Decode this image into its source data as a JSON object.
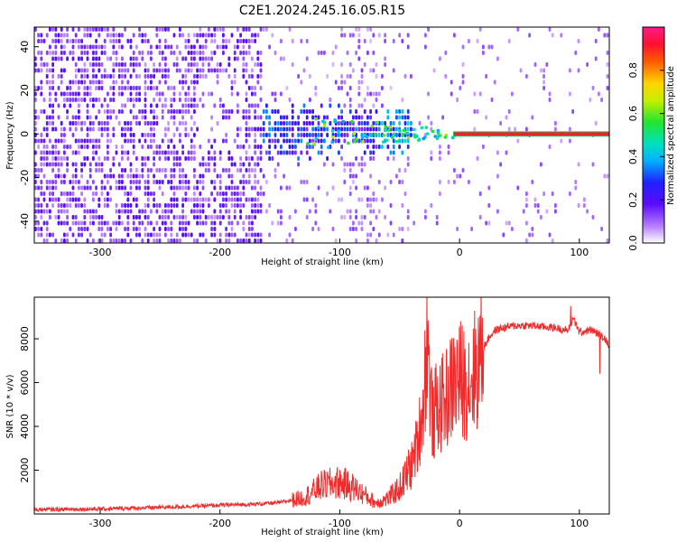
{
  "title": "C2E1.2024.245.16.05.R15",
  "chart_data": [
    {
      "type": "heatmap",
      "xlabel": "Height of straight line (km)",
      "ylabel": "Frequency (Hz)",
      "xlim": [
        -355,
        125
      ],
      "ylim": [
        -50,
        49
      ],
      "x_ticks": [
        -300,
        -200,
        -100,
        0,
        100
      ],
      "x_tick_labels": [
        "-300",
        "-200",
        "-100",
        "0",
        "100"
      ],
      "y_ticks": [
        -40,
        -20,
        0,
        20,
        40
      ],
      "y_tick_labels": [
        "-40",
        "-20",
        "0",
        "20",
        "40"
      ],
      "features": [
        {
          "x_range": [
            -355,
            -165
          ],
          "freq_range": [
            -50,
            49
          ],
          "amplitude": [
            0.0,
            0.15
          ],
          "note": "diffuse noise"
        },
        {
          "x_range": [
            -165,
            -40
          ],
          "freq_range": [
            -10,
            15
          ],
          "amplitude": [
            0.1,
            0.4
          ],
          "note": "converging signal band"
        },
        {
          "x_range": [
            -60,
            0
          ],
          "freq_range": [
            -5,
            6
          ],
          "amplitude": [
            0.3,
            0.6
          ],
          "note": "strong signal"
        },
        {
          "x_range": [
            -5,
            125
          ],
          "freq_range": [
            -1,
            1
          ],
          "amplitude": [
            0.8,
            1.0
          ],
          "note": "carrier line"
        }
      ],
      "colorbar": {
        "label": "Normalized spectral amplitude",
        "range": [
          0,
          1
        ],
        "ticks": [
          0.0,
          0.2,
          0.4,
          0.6,
          0.8
        ],
        "tick_labels": [
          "0.0",
          "0.2",
          "0.4",
          "0.6",
          "0.8"
        ],
        "colormap": "rainbow (white → violet → blue → cyan → green → yellow → red → magenta)"
      },
      "colors": {
        "carrier_line": "#e5242b",
        "carrier_edge": "#22c55e",
        "noise": "#7c3aed"
      }
    },
    {
      "type": "line",
      "xlabel": "Height of straight line (km)",
      "ylabel": "SNR (10 * v/v)",
      "xlim": [
        -355,
        125
      ],
      "ylim": [
        0,
        9900
      ],
      "x_ticks": [
        -300,
        -200,
        -100,
        0,
        100
      ],
      "x_tick_labels": [
        "-300",
        "-200",
        "-100",
        "0",
        "100"
      ],
      "y_ticks": [
        2000,
        4000,
        6000,
        8000
      ],
      "y_tick_labels": [
        "2000",
        "4000",
        "6000",
        "8000"
      ],
      "line_color": "#ef2b2b",
      "series": [
        {
          "x": [
            -355,
            -300,
            -250,
            -200,
            -170,
            -150,
            -130,
            -115,
            -100,
            -90,
            -80,
            -70,
            -60,
            -50,
            -45,
            -40,
            -35,
            -30,
            -27,
            -25,
            -22,
            -20,
            -15,
            -10,
            -5,
            0,
            5,
            10,
            15,
            20,
            25,
            30,
            40,
            50,
            60,
            70,
            80,
            90,
            95,
            100,
            110,
            120,
            125
          ],
          "y": [
            200,
            230,
            300,
            400,
            450,
            520,
            750,
            1300,
            1450,
            1250,
            900,
            500,
            700,
            1200,
            1700,
            2300,
            3300,
            5000,
            8400,
            6000,
            4000,
            4800,
            5000,
            5400,
            6000,
            6200,
            6000,
            6300,
            6800,
            7600,
            8100,
            8400,
            8550,
            8600,
            8600,
            8550,
            8500,
            8400,
            8900,
            8300,
            8400,
            8100,
            7700
          ]
        }
      ]
    }
  ]
}
